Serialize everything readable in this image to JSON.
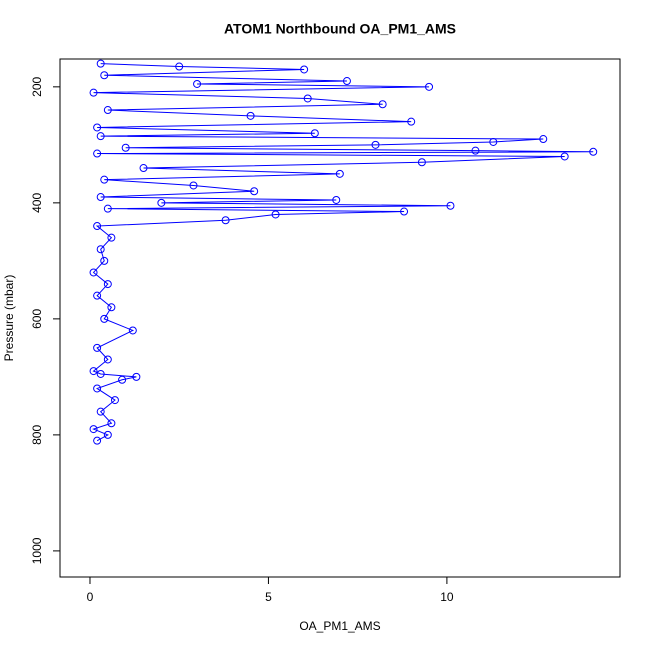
{
  "chart_data": {
    "type": "line",
    "markers": true,
    "title": "ATOM1 Northbound OA_PM1_AMS",
    "x_label": "OA_PM1_AMS",
    "y_label": "Pressure (mbar)",
    "x": [
      0.2,
      0.5,
      0.1,
      0.6,
      0.3,
      0.7,
      0.2,
      0.9,
      1.3,
      0.3,
      0.1,
      0.5,
      0.2,
      1.2,
      0.4,
      0.6,
      0.2,
      0.5,
      0.1,
      0.4,
      0.3,
      0.6,
      0.2,
      3.8,
      5.2,
      8.8,
      0.5,
      10.1,
      2.0,
      6.9,
      0.3,
      4.6,
      2.9,
      0.4,
      7.0,
      1.5,
      9.3,
      13.3,
      0.2,
      14.1,
      10.8,
      1.0,
      8.0,
      11.3,
      12.7,
      0.3,
      6.3,
      0.2,
      9.0,
      4.5,
      0.5,
      8.2,
      6.1,
      0.1,
      9.5,
      3.0,
      7.2,
      0.4,
      6.0,
      2.5,
      0.3
    ],
    "series": [
      {
        "color": "#0000ff",
        "values": [
          810,
          800,
          790,
          780,
          760,
          740,
          720,
          705,
          700,
          695,
          690,
          670,
          650,
          620,
          600,
          580,
          560,
          540,
          520,
          500,
          480,
          460,
          440,
          430,
          420,
          415,
          410,
          405,
          400,
          395,
          390,
          380,
          370,
          360,
          350,
          340,
          330,
          320,
          315,
          312,
          310,
          305,
          300,
          295,
          290,
          285,
          280,
          270,
          260,
          250,
          240,
          230,
          220,
          210,
          200,
          195,
          190,
          180,
          170,
          165,
          160
        ]
      }
    ],
    "xlim": [
      -0.84,
      14.85
    ],
    "xticks": [
      0,
      5,
      10
    ],
    "ylim": [
      1045,
      152
    ],
    "yticks": [
      200,
      400,
      600,
      800,
      1000
    ]
  }
}
